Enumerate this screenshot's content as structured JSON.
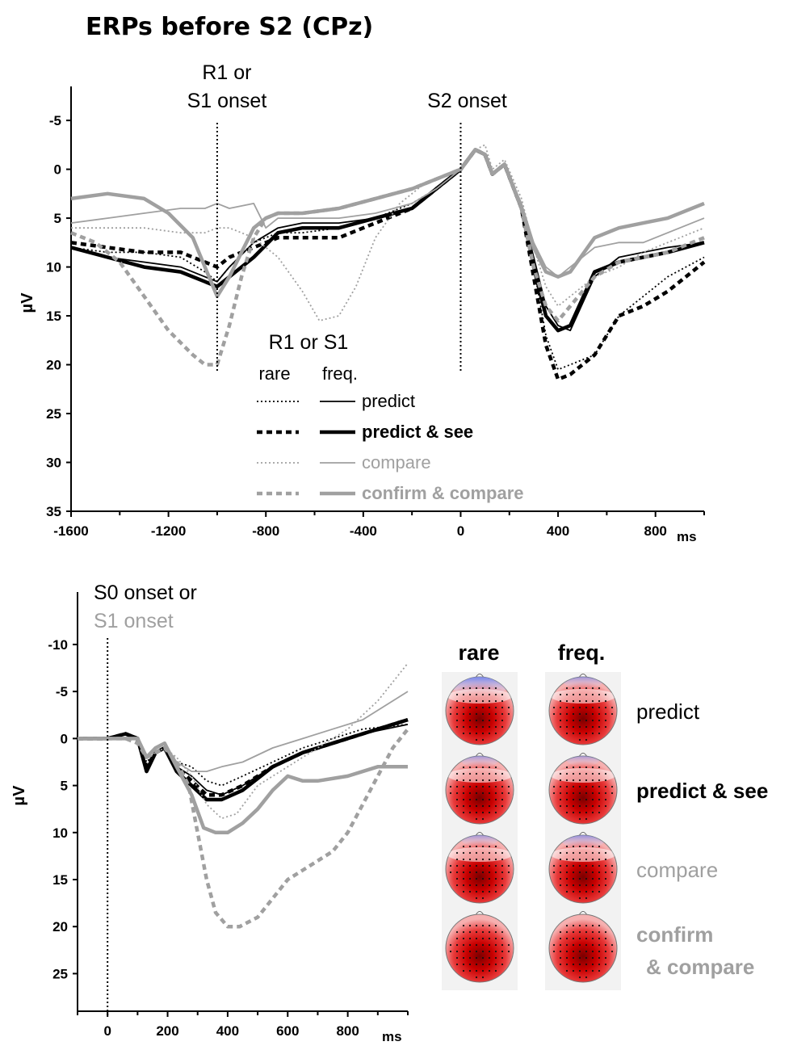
{
  "title": "ERPs before S2 (CPz)",
  "colors": {
    "black": "#000000",
    "gray": "#a0a0a0",
    "red": "#cc0000",
    "blue": "#2a3fd0"
  },
  "chart_data": [
    {
      "type": "line",
      "title": "ERPs before S2 (CPz)",
      "xlabel": "ms",
      "ylabel": "µV",
      "xlim": [
        -1600,
        1000
      ],
      "ylim": [
        -6,
        35
      ],
      "y_inverted": true,
      "xticks": [
        -1600,
        -1200,
        -800,
        -400,
        0,
        400,
        800
      ],
      "yticks": [
        -5,
        0,
        5,
        10,
        15,
        20,
        25,
        30,
        35
      ],
      "annotations": [
        {
          "x": -1000,
          "lines": [
            "R1 or",
            "S1 onset"
          ]
        },
        {
          "x": 0,
          "lines": [
            "S2 onset"
          ]
        }
      ],
      "legend": {
        "title": "R1 or S1",
        "col_rare": "rare",
        "col_freq": "freq.",
        "entries": [
          {
            "label": "predict",
            "color": "black",
            "width": "thin"
          },
          {
            "label": "predict & see",
            "color": "black",
            "width": "thick"
          },
          {
            "label": "compare",
            "color": "gray",
            "width": "thin"
          },
          {
            "label": "confirm & compare",
            "color": "gray",
            "width": "thick"
          }
        ]
      },
      "series": [
        {
          "name": "predict rare",
          "style": "dotted",
          "color": "black",
          "width": "thin",
          "x": [
            -1600,
            -1450,
            -1300,
            -1150,
            -1050,
            -1000,
            -950,
            -850,
            -750,
            -650,
            -500,
            -350,
            -200,
            -100,
            0,
            60,
            100,
            130,
            180,
            250,
            300,
            350,
            400,
            450,
            550,
            650,
            750,
            850,
            1000
          ],
          "y": [
            8,
            8.5,
            8.5,
            9,
            10.5,
            11.5,
            10,
            7.5,
            6.5,
            6.5,
            6,
            5,
            3.5,
            2,
            0,
            -2,
            -1.5,
            0.5,
            -0.5,
            4,
            10,
            17,
            20.5,
            20,
            19,
            15,
            13,
            11,
            9
          ]
        },
        {
          "name": "predict freq.",
          "style": "solid",
          "color": "black",
          "width": "thin",
          "x": [
            -1600,
            -1450,
            -1300,
            -1150,
            -1050,
            -1000,
            -950,
            -850,
            -750,
            -650,
            -500,
            -350,
            -200,
            -100,
            0,
            60,
            100,
            130,
            180,
            250,
            300,
            350,
            400,
            450,
            550,
            650,
            750,
            850,
            1000
          ],
          "y": [
            8,
            9,
            9.5,
            10,
            11,
            11.5,
            10,
            7.5,
            6,
            5.5,
            5.5,
            5,
            4,
            2,
            0,
            -2,
            -1.5,
            0.5,
            -0.5,
            4,
            9,
            14,
            16,
            16.5,
            11,
            9,
            8.5,
            8,
            7.5
          ]
        },
        {
          "name": "predict & see rare",
          "style": "dashed",
          "color": "black",
          "width": "thick",
          "x": [
            -1600,
            -1450,
            -1300,
            -1150,
            -1050,
            -1000,
            -950,
            -850,
            -750,
            -650,
            -500,
            -350,
            -200,
            -100,
            0,
            60,
            100,
            130,
            180,
            250,
            300,
            350,
            400,
            450,
            550,
            650,
            750,
            850,
            1000
          ],
          "y": [
            7.5,
            8,
            8.5,
            8.5,
            9.5,
            10,
            9,
            8,
            7,
            7,
            7,
            5.5,
            4,
            2,
            0,
            -2,
            -1.5,
            0.5,
            -0.5,
            4,
            11,
            18,
            21.5,
            21,
            19,
            15,
            14,
            12.5,
            9.5
          ]
        },
        {
          "name": "predict & see freq.",
          "style": "solid",
          "color": "black",
          "width": "thick",
          "x": [
            -1600,
            -1450,
            -1300,
            -1150,
            -1050,
            -1000,
            -950,
            -850,
            -750,
            -650,
            -500,
            -350,
            -200,
            -100,
            0,
            60,
            100,
            130,
            180,
            250,
            300,
            350,
            400,
            450,
            550,
            650,
            750,
            850,
            1000
          ],
          "y": [
            8,
            9,
            10,
            10.5,
            11.5,
            12,
            11,
            9,
            6.5,
            6,
            6,
            5,
            4,
            2,
            0,
            -2,
            -1.5,
            0.5,
            -0.5,
            4,
            10,
            15,
            16.5,
            16,
            10.5,
            9.5,
            9,
            8.5,
            7.5
          ]
        },
        {
          "name": "compare rare",
          "style": "dotted",
          "color": "gray",
          "width": "thin",
          "x": [
            -1600,
            -1450,
            -1300,
            -1150,
            -1050,
            -1000,
            -950,
            -850,
            -750,
            -650,
            -580,
            -500,
            -430,
            -350,
            -250,
            -150,
            -50,
            0,
            60,
            100,
            130,
            180,
            250,
            300,
            350,
            400,
            450,
            550,
            650,
            750,
            850,
            1000
          ],
          "y": [
            6,
            6,
            6,
            6.5,
            6.5,
            6,
            6,
            7,
            9,
            12.5,
            15.5,
            15,
            12,
            7,
            3.5,
            1.5,
            0.5,
            0,
            -2,
            -2.5,
            0,
            -1,
            3,
            8,
            12,
            14,
            13,
            11,
            10,
            8.5,
            7.5,
            6
          ]
        },
        {
          "name": "compare freq.",
          "style": "solid",
          "color": "gray",
          "width": "thin",
          "x": [
            -1600,
            -1450,
            -1300,
            -1150,
            -1050,
            -1000,
            -950,
            -850,
            -800,
            -750,
            -650,
            -500,
            -350,
            -200,
            -100,
            0,
            60,
            100,
            130,
            180,
            250,
            300,
            350,
            400,
            450,
            550,
            650,
            750,
            850,
            1000
          ],
          "y": [
            5.5,
            5,
            4.5,
            4,
            4,
            3.5,
            4,
            3.5,
            6,
            5,
            5,
            5,
            4.5,
            3.5,
            2,
            0,
            -2,
            -1.5,
            0.5,
            -0.5,
            3.5,
            7.5,
            10,
            11,
            10,
            8,
            7.5,
            7.5,
            6.5,
            5
          ]
        },
        {
          "name": "confirm & compare rare",
          "style": "dashed",
          "color": "gray",
          "width": "thick",
          "x": [
            -1600,
            -1500,
            -1400,
            -1300,
            -1200,
            -1100,
            -1050,
            -1000,
            -950,
            -900,
            -850,
            -800,
            -750,
            -650,
            -500,
            -350,
            -200,
            -100,
            0,
            60,
            100,
            130,
            180,
            250,
            300,
            350,
            400,
            450,
            550,
            650,
            750,
            850,
            1000
          ],
          "y": [
            6.5,
            7.5,
            9.5,
            13,
            16.5,
            19,
            20,
            20,
            16,
            11,
            7,
            5,
            4.5,
            4.5,
            4,
            3,
            2,
            1,
            0,
            -2,
            -1.5,
            0.5,
            -0.5,
            4,
            10,
            14,
            15.5,
            14,
            11,
            9.5,
            9,
            8.5,
            7
          ]
        },
        {
          "name": "confirm & compare freq.",
          "style": "solid",
          "color": "gray",
          "width": "thick",
          "x": [
            -1600,
            -1450,
            -1300,
            -1200,
            -1100,
            -1050,
            -1000,
            -950,
            -900,
            -850,
            -800,
            -750,
            -650,
            -500,
            -350,
            -200,
            -100,
            0,
            60,
            100,
            130,
            180,
            250,
            300,
            350,
            400,
            450,
            550,
            650,
            750,
            850,
            1000
          ],
          "y": [
            3,
            2.5,
            3,
            4.5,
            7,
            10,
            13,
            11,
            8.5,
            6,
            5,
            4.5,
            4.5,
            4,
            3,
            2,
            1,
            0,
            -2,
            -1.5,
            0.5,
            -0.5,
            4,
            8,
            10.5,
            11,
            10.5,
            7,
            6,
            5.5,
            5,
            3.5
          ]
        }
      ]
    },
    {
      "type": "line",
      "xlabel": "ms",
      "ylabel": "µV",
      "xlim": [
        -100,
        1000
      ],
      "ylim": [
        -13,
        29
      ],
      "y_inverted": true,
      "xticks": [
        0,
        200,
        400,
        600,
        800
      ],
      "yticks": [
        -10,
        -5,
        0,
        5,
        10,
        15,
        20,
        25
      ],
      "annotations": [
        {
          "x": 0,
          "lines": [
            "S0 onset or",
            "S1 onset"
          ]
        }
      ],
      "series": [
        {
          "name": "predict rare",
          "style": "dotted",
          "color": "black",
          "width": "thin",
          "x": [
            -100,
            0,
            60,
            100,
            130,
            160,
            190,
            230,
            280,
            330,
            380,
            450,
            550,
            650,
            750,
            850,
            1000
          ],
          "y": [
            0,
            0,
            -0.5,
            0,
            2.5,
            1.5,
            1,
            2.5,
            3,
            4.5,
            5,
            4,
            2.5,
            1,
            0,
            -1,
            -1.5
          ]
        },
        {
          "name": "predict freq.",
          "style": "solid",
          "color": "black",
          "width": "thin",
          "x": [
            -100,
            0,
            60,
            100,
            130,
            160,
            190,
            230,
            280,
            330,
            380,
            450,
            550,
            650,
            750,
            850,
            1000
          ],
          "y": [
            0,
            0,
            -0.5,
            0,
            3,
            1.5,
            1,
            3,
            4,
            5.5,
            6,
            5,
            3,
            1.5,
            0.5,
            -0.5,
            -1.5
          ]
        },
        {
          "name": "predict & see rare",
          "style": "dashed",
          "color": "black",
          "width": "thick",
          "x": [
            -100,
            0,
            60,
            100,
            130,
            160,
            190,
            230,
            280,
            330,
            380,
            450,
            550,
            650,
            750,
            850,
            1000
          ],
          "y": [
            0,
            0,
            -0.5,
            0,
            3,
            1.5,
            1,
            3,
            4.5,
            6,
            6,
            5,
            3,
            1.5,
            0.5,
            -0.5,
            -2
          ]
        },
        {
          "name": "predict & see freq.",
          "style": "solid",
          "color": "black",
          "width": "thick",
          "x": [
            -100,
            0,
            60,
            100,
            130,
            160,
            190,
            230,
            280,
            330,
            380,
            450,
            550,
            650,
            750,
            850,
            1000
          ],
          "y": [
            0,
            0,
            -0.5,
            0,
            3.5,
            1.5,
            1,
            3.5,
            5,
            6.5,
            6.5,
            5.5,
            3,
            1.5,
            0.5,
            -0.5,
            -2
          ]
        },
        {
          "name": "compare rare",
          "style": "dotted",
          "color": "gray",
          "width": "thin",
          "x": [
            -100,
            0,
            60,
            100,
            130,
            160,
            190,
            230,
            280,
            330,
            380,
            430,
            500,
            600,
            700,
            800,
            900,
            1000
          ],
          "y": [
            0,
            0,
            0,
            0,
            2,
            1.5,
            1,
            2,
            4,
            7,
            8.5,
            8,
            5,
            3,
            1,
            -1,
            -4,
            -8
          ]
        },
        {
          "name": "compare freq.",
          "style": "solid",
          "color": "gray",
          "width": "thin",
          "x": [
            -100,
            0,
            60,
            100,
            130,
            160,
            190,
            230,
            280,
            330,
            380,
            450,
            550,
            650,
            750,
            850,
            1000
          ],
          "y": [
            0,
            0,
            0,
            0,
            2,
            1,
            0.5,
            2.5,
            3.5,
            3.5,
            3,
            2.5,
            1,
            0,
            -1,
            -2,
            -5
          ]
        },
        {
          "name": "confirm & compare rare",
          "style": "dashed",
          "color": "gray",
          "width": "thick",
          "x": [
            -100,
            0,
            60,
            100,
            130,
            160,
            190,
            230,
            270,
            300,
            330,
            360,
            400,
            440,
            500,
            550,
            600,
            650,
            700,
            750,
            800,
            850,
            900,
            950,
            1000
          ],
          "y": [
            0,
            0,
            0,
            0.5,
            2,
            1.5,
            1,
            2.5,
            5,
            10,
            15,
            18.5,
            20,
            20,
            19,
            17,
            15,
            14,
            13,
            12,
            10,
            7,
            4,
            1,
            -1
          ]
        },
        {
          "name": "confirm & compare freq.",
          "style": "solid",
          "color": "gray",
          "width": "thick",
          "x": [
            -100,
            0,
            60,
            100,
            130,
            160,
            190,
            230,
            280,
            320,
            360,
            400,
            450,
            500,
            550,
            600,
            650,
            700,
            800,
            900,
            1000
          ],
          "y": [
            0,
            0,
            0,
            0,
            2,
            1,
            0.5,
            3,
            6,
            9.5,
            10,
            10,
            9,
            7.5,
            5.5,
            4,
            4.5,
            4.5,
            4,
            3,
            3
          ]
        }
      ]
    }
  ],
  "topomaps": {
    "col_rare": "rare",
    "col_freq": "freq.",
    "rows": [
      {
        "label": "predict",
        "color": "black",
        "bold": false,
        "label2": "",
        "blue_rare": 0.85,
        "blue_freq": 0.35
      },
      {
        "label": "predict & see",
        "color": "black",
        "bold": true,
        "label2": "",
        "blue_rare": 0.3,
        "blue_freq": 0.2
      },
      {
        "label": "compare",
        "color": "gray",
        "bold": false,
        "label2": "",
        "blue_rare": 0.3,
        "blue_freq": 0.45
      },
      {
        "label": "confirm",
        "color": "gray",
        "bold": true,
        "label2": "& compare",
        "blue_rare": 0,
        "blue_freq": 0
      }
    ]
  }
}
